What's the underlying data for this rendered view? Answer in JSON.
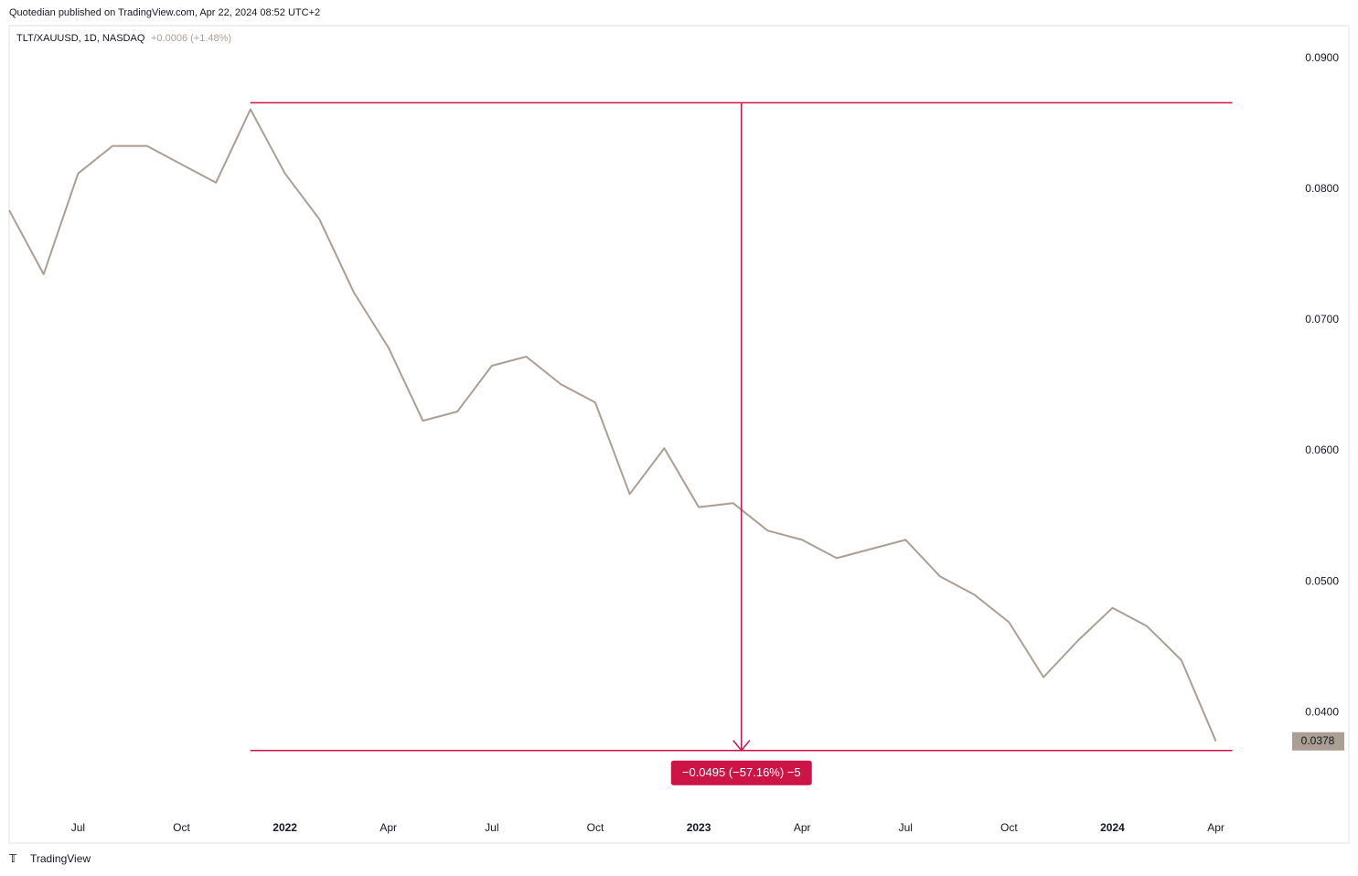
{
  "header": {
    "publisher": "Quotedian published on TradingView.com, Apr 22, 2024 08:52 UTC+2",
    "brand": "TradingView"
  },
  "chart_data": {
    "type": "line",
    "symbol": "TLT/XAUUSD, 1D, NASDAQ",
    "change": "+0.0006 (+1.48%)",
    "x": [
      "2021-05",
      "2021-06",
      "2021-07",
      "2021-08",
      "2021-09",
      "2021-10",
      "2021-11",
      "2021-12",
      "2022-01",
      "2022-02",
      "2022-03",
      "2022-04",
      "2022-05",
      "2022-06",
      "2022-07",
      "2022-08",
      "2022-09",
      "2022-10",
      "2022-11",
      "2022-12",
      "2023-01",
      "2023-02",
      "2023-03",
      "2023-04",
      "2023-05",
      "2023-06",
      "2023-07",
      "2023-08",
      "2023-09",
      "2023-10",
      "2023-11",
      "2023-12",
      "2024-01",
      "2024-02",
      "2024-03",
      "2024-04"
    ],
    "series": [
      {
        "name": "TLT/XAUUSD",
        "color": "#ab9f93",
        "values": [
          0.0784,
          0.0735,
          0.0812,
          0.0833,
          0.0833,
          0.0819,
          0.0805,
          0.0861,
          0.0812,
          0.0777,
          0.0721,
          0.0679,
          0.0623,
          0.063,
          0.0665,
          0.0672,
          0.0651,
          0.0637,
          0.0567,
          0.0602,
          0.0557,
          0.056,
          0.0539,
          0.0532,
          0.0518,
          0.0525,
          0.0532,
          0.0504,
          0.049,
          0.0469,
          0.0427,
          0.0455,
          0.048,
          0.0466,
          0.044,
          0.0378
        ]
      }
    ],
    "last_label": "0.0378",
    "xlim": [
      "2021-05",
      "2024-06"
    ],
    "xticks": [
      {
        "value": "2021-07",
        "label": "Jul"
      },
      {
        "value": "2021-10",
        "label": "Oct"
      },
      {
        "value": "2022-01",
        "label": "2022"
      },
      {
        "value": "2022-04",
        "label": "Apr"
      },
      {
        "value": "2022-07",
        "label": "Jul"
      },
      {
        "value": "2022-10",
        "label": "Oct"
      },
      {
        "value": "2023-01",
        "label": "2023"
      },
      {
        "value": "2023-04",
        "label": "Apr"
      },
      {
        "value": "2023-07",
        "label": "Jul"
      },
      {
        "value": "2023-10",
        "label": "Oct"
      },
      {
        "value": "2024-01",
        "label": "2024"
      },
      {
        "value": "2024-04",
        "label": "Apr"
      }
    ],
    "ylim": [
      0.0324,
      0.0925
    ],
    "yticks": [
      {
        "value": 0.04,
        "label": "0.0400"
      },
      {
        "value": 0.05,
        "label": "0.0500"
      },
      {
        "value": 0.06,
        "label": "0.0600"
      },
      {
        "value": 0.07,
        "label": "0.0700"
      },
      {
        "value": 0.08,
        "label": "0.0800"
      },
      {
        "value": 0.09,
        "label": "0.0900"
      }
    ],
    "measure": {
      "x_start": "2021-12",
      "x_end": "2024-04",
      "from": 0.0866,
      "to": 0.0371,
      "color": "#cc1447",
      "label": "−0.0495 (−57.16%) −5"
    }
  }
}
